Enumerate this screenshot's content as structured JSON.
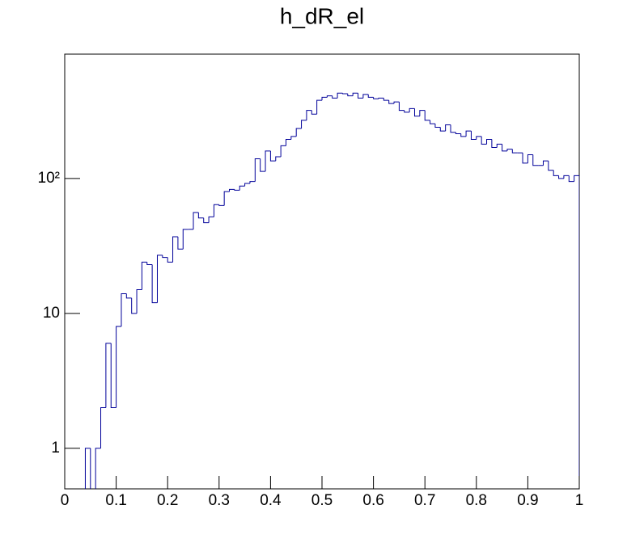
{
  "chart_data": {
    "type": "histogram",
    "title": "h_dR_el",
    "color": "#000099",
    "log_y": true,
    "bins": [
      0,
      0.01,
      0.02,
      0.03,
      0.04,
      0.05,
      0.06,
      0.07,
      0.08,
      0.09,
      0.1,
      0.11,
      0.12,
      0.13,
      0.14,
      0.15,
      0.16,
      0.17,
      0.18,
      0.19,
      0.2,
      0.21,
      0.22,
      0.23,
      0.24,
      0.25,
      0.26,
      0.27,
      0.28,
      0.29,
      0.3,
      0.31,
      0.32,
      0.33,
      0.34,
      0.35,
      0.36,
      0.37,
      0.38,
      0.39,
      0.4,
      0.41,
      0.42,
      0.43,
      0.44,
      0.45,
      0.46,
      0.47,
      0.48,
      0.49,
      0.5,
      0.51,
      0.52,
      0.53,
      0.54,
      0.55,
      0.56,
      0.57,
      0.58,
      0.59,
      0.6,
      0.61,
      0.62,
      0.63,
      0.64,
      0.65,
      0.66,
      0.67,
      0.68,
      0.69,
      0.7,
      0.71,
      0.72,
      0.73,
      0.74,
      0.75,
      0.76,
      0.77,
      0.78,
      0.79,
      0.8,
      0.81,
      0.82,
      0.83,
      0.84,
      0.85,
      0.86,
      0.87,
      0.88,
      0.89,
      0.9,
      0.91,
      0.92,
      0.93,
      0.94,
      0.95,
      0.96,
      0.97,
      0.98,
      0.99,
      1
    ],
    "values": [
      0,
      0,
      0,
      0,
      1,
      0,
      1,
      2,
      6,
      2,
      8,
      14,
      13,
      10,
      15,
      24,
      23,
      12,
      27,
      26,
      24,
      37,
      30,
      42,
      42,
      56,
      51,
      47,
      52,
      64,
      63,
      80,
      83,
      82,
      88,
      92,
      95,
      140,
      113,
      160,
      135,
      145,
      175,
      195,
      205,
      235,
      270,
      320,
      300,
      380,
      400,
      410,
      395,
      430,
      425,
      410,
      430,
      395,
      420,
      400,
      390,
      395,
      380,
      360,
      370,
      320,
      310,
      330,
      290,
      320,
      270,
      255,
      240,
      225,
      250,
      220,
      215,
      205,
      225,
      195,
      205,
      180,
      195,
      170,
      180,
      160,
      165,
      155,
      155,
      130,
      150,
      125,
      125,
      135,
      115,
      105,
      100,
      105,
      95,
      105
    ],
    "xlim": [
      0,
      1
    ],
    "xticks": [
      0,
      0.1,
      0.2,
      0.3,
      0.4,
      0.5,
      0.6,
      0.7,
      0.8,
      0.9,
      1
    ],
    "ylim": [
      0.5,
      836
    ],
    "yticks": [
      1,
      10,
      {
        "value": 100,
        "label": "10²"
      }
    ]
  }
}
